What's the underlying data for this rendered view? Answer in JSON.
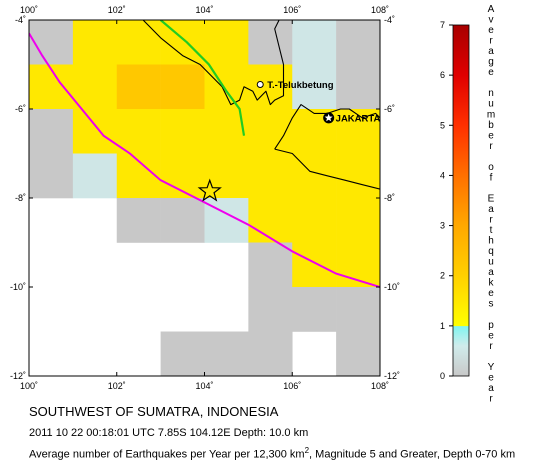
{
  "title": "SOUTHWEST OF SUMATRA, INDONESIA",
  "event_details": "2011 10 22 00:18:01 UTC 7.85S 104.12E Depth: 10.0 km",
  "subtitle": {
    "prefix": "Average number of Earthquakes per Year per 12,300 km",
    "superscript": "2",
    "suffix": ", Magnitude 5 and Greater, Depth 0-70 km"
  },
  "places": [
    {
      "name": "T.-Telukbetung",
      "lon": 105.27,
      "lat": -5.45,
      "marker": "circle"
    },
    {
      "name": "JAKARTA",
      "lon": 106.83,
      "lat": -6.2,
      "marker": "capital"
    }
  ],
  "epicenter": {
    "lon": 104.12,
    "lat": -7.85,
    "marker": "star"
  },
  "map": {
    "lon_range": [
      100,
      108
    ],
    "lat_range": [
      -12,
      -4
    ],
    "lon_ticks": [
      {
        "value": 100,
        "label": "100˚"
      },
      {
        "value": 102,
        "label": "102˚"
      },
      {
        "value": 104,
        "label": "104˚"
      },
      {
        "value": 106,
        "label": "106˚"
      },
      {
        "value": 108,
        "label": "108˚"
      }
    ],
    "lat_ticks": [
      {
        "value": -4,
        "label": "-4˚"
      },
      {
        "value": -6,
        "label": "-6˚"
      },
      {
        "value": -8,
        "label": "-8˚"
      },
      {
        "value": -10,
        "label": "-10˚"
      },
      {
        "value": -12,
        "label": "-12˚"
      }
    ],
    "grid_cell_degrees": 1,
    "colors": {
      "coastline": "#000000",
      "trench": "#ee00ee",
      "fault": "#22cc22"
    },
    "seismicity_cells": [
      {
        "lon": 100,
        "lat": -4,
        "rate": 0
      },
      {
        "lon": 101,
        "lat": -4,
        "rate": 1.5
      },
      {
        "lon": 102,
        "lat": -4,
        "rate": 1.5
      },
      {
        "lon": 103,
        "lat": -4,
        "rate": 1.5
      },
      {
        "lon": 104,
        "lat": -4,
        "rate": 1.5
      },
      {
        "lon": 105,
        "lat": -4,
        "rate": 0
      },
      {
        "lon": 106,
        "lat": -4,
        "rate": 0.5
      },
      {
        "lon": 107,
        "lat": -4,
        "rate": 0
      },
      {
        "lon": 100,
        "lat": -5,
        "rate": 1.5
      },
      {
        "lon": 101,
        "lat": -5,
        "rate": 1.5
      },
      {
        "lon": 102,
        "lat": -5,
        "rate": 2.2
      },
      {
        "lon": 103,
        "lat": -5,
        "rate": 2.2
      },
      {
        "lon": 104,
        "lat": -5,
        "rate": 1.5
      },
      {
        "lon": 105,
        "lat": -5,
        "rate": 1.5
      },
      {
        "lon": 106,
        "lat": -5,
        "rate": 0.5
      },
      {
        "lon": 107,
        "lat": -5,
        "rate": 0
      },
      {
        "lon": 100,
        "lat": -6,
        "rate": 0
      },
      {
        "lon": 101,
        "lat": -6,
        "rate": 1.5
      },
      {
        "lon": 102,
        "lat": -6,
        "rate": 1.5
      },
      {
        "lon": 103,
        "lat": -6,
        "rate": 1.5
      },
      {
        "lon": 104,
        "lat": -6,
        "rate": 1.5
      },
      {
        "lon": 105,
        "lat": -6,
        "rate": 1.5
      },
      {
        "lon": 106,
        "lat": -6,
        "rate": 1.5
      },
      {
        "lon": 107,
        "lat": -6,
        "rate": 1.5
      },
      {
        "lon": 100,
        "lat": -7,
        "rate": 0
      },
      {
        "lon": 101,
        "lat": -7,
        "rate": 0.5
      },
      {
        "lon": 102,
        "lat": -7,
        "rate": 1.5
      },
      {
        "lon": 103,
        "lat": -7,
        "rate": 1.5
      },
      {
        "lon": 104,
        "lat": -7,
        "rate": 1.5
      },
      {
        "lon": 105,
        "lat": -7,
        "rate": 1.5
      },
      {
        "lon": 106,
        "lat": -7,
        "rate": 1.5
      },
      {
        "lon": 107,
        "lat": -7,
        "rate": 1.5
      },
      {
        "lon": 102,
        "lat": -8,
        "rate": 0
      },
      {
        "lon": 103,
        "lat": -8,
        "rate": 0
      },
      {
        "lon": 104,
        "lat": -8,
        "rate": 0.5
      },
      {
        "lon": 105,
        "lat": -8,
        "rate": 1.5
      },
      {
        "lon": 106,
        "lat": -8,
        "rate": 1.5
      },
      {
        "lon": 107,
        "lat": -8,
        "rate": 1.5
      },
      {
        "lon": 105,
        "lat": -9,
        "rate": 0
      },
      {
        "lon": 106,
        "lat": -9,
        "rate": 1.5
      },
      {
        "lon": 107,
        "lat": -9,
        "rate": 1.5
      },
      {
        "lon": 105,
        "lat": -10,
        "rate": 0
      },
      {
        "lon": 106,
        "lat": -10,
        "rate": 0
      },
      {
        "lon": 107,
        "lat": -10,
        "rate": 0
      },
      {
        "lon": 107,
        "lat": -11,
        "rate": 0
      },
      {
        "lon": 103,
        "lat": -11,
        "rate": 0
      },
      {
        "lon": 104,
        "lat": -11,
        "rate": 0
      },
      {
        "lon": 105,
        "lat": -11,
        "rate": 0
      }
    ],
    "coastlines": [
      [
        [
          102.6,
          -4.0
        ],
        [
          103.0,
          -4.4
        ],
        [
          103.5,
          -4.8
        ],
        [
          103.9,
          -5.0
        ],
        [
          104.4,
          -5.5
        ],
        [
          104.6,
          -5.9
        ],
        [
          104.8,
          -5.8
        ],
        [
          104.9,
          -5.5
        ],
        [
          105.1,
          -5.6
        ],
        [
          105.2,
          -5.8
        ],
        [
          105.4,
          -5.6
        ],
        [
          105.5,
          -5.9
        ],
        [
          105.6,
          -5.8
        ],
        [
          105.8,
          -5.7
        ],
        [
          105.8,
          -5.4
        ],
        [
          105.8,
          -5.0
        ],
        [
          105.7,
          -4.6
        ],
        [
          105.6,
          -4.2
        ],
        [
          105.7,
          -4.0
        ]
      ],
      [
        [
          105.6,
          -6.9
        ],
        [
          105.8,
          -6.6
        ],
        [
          106.0,
          -6.2
        ],
        [
          106.2,
          -5.9
        ],
        [
          106.5,
          -6.1
        ],
        [
          106.8,
          -6.1
        ],
        [
          107.1,
          -6.0
        ],
        [
          107.3,
          -6.0
        ],
        [
          107.6,
          -6.2
        ],
        [
          107.9,
          -6.1
        ],
        [
          108.0,
          -6.2
        ]
      ],
      [
        [
          105.6,
          -6.9
        ],
        [
          106.0,
          -7.0
        ],
        [
          106.4,
          -7.4
        ],
        [
          106.8,
          -7.5
        ],
        [
          107.2,
          -7.6
        ],
        [
          107.6,
          -7.7
        ],
        [
          108.0,
          -7.8
        ]
      ]
    ],
    "trench": [
      [
        100.0,
        -4.3
      ],
      [
        100.3,
        -4.8
      ],
      [
        100.7,
        -5.4
      ],
      [
        101.2,
        -6.0
      ],
      [
        101.7,
        -6.6
      ],
      [
        102.3,
        -7.0
      ],
      [
        103.0,
        -7.6
      ],
      [
        104.0,
        -8.1
      ],
      [
        105.0,
        -8.6
      ],
      [
        106.0,
        -9.2
      ],
      [
        107.0,
        -9.7
      ],
      [
        108.0,
        -10.0
      ]
    ],
    "fault": [
      [
        103.0,
        -4.0
      ],
      [
        103.6,
        -4.5
      ],
      [
        104.1,
        -5.0
      ],
      [
        104.5,
        -5.6
      ],
      [
        104.8,
        -6.0
      ],
      [
        104.9,
        -6.6
      ]
    ]
  },
  "colorbar": {
    "title_letters": [
      "A",
      "v",
      "e",
      "r",
      "a",
      "g",
      "e",
      " ",
      "n",
      "u",
      "m",
      "b",
      "e",
      "r",
      " ",
      "o",
      "f",
      " ",
      "E",
      "a",
      "r",
      "t",
      "h",
      "q",
      "u",
      "a",
      "k",
      "e",
      "s",
      " ",
      "p",
      "e",
      "r",
      " ",
      "Y",
      "e",
      "a",
      "r"
    ],
    "tick_values": [
      "0",
      "1",
      "2",
      "3",
      "4",
      "5",
      "6",
      "7"
    ],
    "range": [
      0,
      7
    ],
    "stops": [
      {
        "value": 0,
        "color": "#c8c8c8"
      },
      {
        "value": 0.6,
        "color": "#d0ecec"
      },
      {
        "value": 0.99,
        "color": "#80f4f0"
      },
      {
        "value": 1.0,
        "color": "#ffff00"
      },
      {
        "value": 2.0,
        "color": "#ffd000"
      },
      {
        "value": 3.0,
        "color": "#ffa800"
      },
      {
        "value": 4.0,
        "color": "#ff7000"
      },
      {
        "value": 5.0,
        "color": "#ff3000"
      },
      {
        "value": 6.0,
        "color": "#e00000"
      },
      {
        "value": 7.0,
        "color": "#a80000"
      }
    ]
  }
}
